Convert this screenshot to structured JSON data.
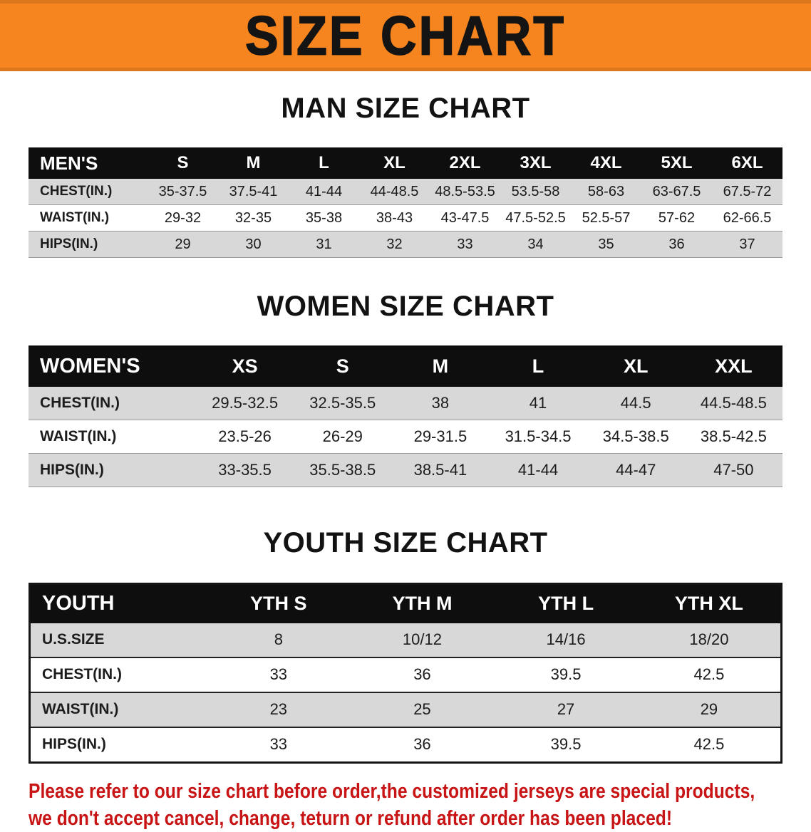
{
  "banner": {
    "title": "SIZE CHART"
  },
  "chart_data": [
    {
      "type": "table",
      "title": "MAN SIZE CHART",
      "columns": [
        "MEN'S",
        "S",
        "M",
        "L",
        "XL",
        "2XL",
        "3XL",
        "4XL",
        "5XL",
        "6XL"
      ],
      "rows": [
        [
          "CHEST(IN.)",
          "35-37.5",
          "37.5-41",
          "41-44",
          "44-48.5",
          "48.5-53.5",
          "53.5-58",
          "58-63",
          "63-67.5",
          "67.5-72"
        ],
        [
          "WAIST(IN.)",
          "29-32",
          "32-35",
          "35-38",
          "38-43",
          "43-47.5",
          "47.5-52.5",
          "52.5-57",
          "57-62",
          "62-66.5"
        ],
        [
          "HIPS(IN.)",
          "29",
          "30",
          "31",
          "32",
          "33",
          "34",
          "35",
          "36",
          "37"
        ]
      ]
    },
    {
      "type": "table",
      "title": "WOMEN SIZE CHART",
      "columns": [
        "WOMEN'S",
        "XS",
        "S",
        "M",
        "L",
        "XL",
        "XXL"
      ],
      "rows": [
        [
          "CHEST(IN.)",
          "29.5-32.5",
          "32.5-35.5",
          "38",
          "41",
          "44.5",
          "44.5-48.5"
        ],
        [
          "WAIST(IN.)",
          "23.5-26",
          "26-29",
          "29-31.5",
          "31.5-34.5",
          "34.5-38.5",
          "38.5-42.5"
        ],
        [
          "HIPS(IN.)",
          "33-35.5",
          "35.5-38.5",
          "38.5-41",
          "41-44",
          "44-47",
          "47-50"
        ]
      ]
    },
    {
      "type": "table",
      "title": "YOUTH SIZE CHART",
      "columns": [
        "YOUTH",
        "YTH S",
        "YTH M",
        "YTH L",
        "YTH XL"
      ],
      "rows": [
        [
          "U.S.SIZE",
          "8",
          "10/12",
          "14/16",
          "18/20"
        ],
        [
          "CHEST(IN.)",
          "33",
          "36",
          "39.5",
          "42.5"
        ],
        [
          "WAIST(IN.)",
          "23",
          "25",
          "27",
          "29"
        ],
        [
          "HIPS(IN.)",
          "33",
          "36",
          "39.5",
          "42.5"
        ]
      ]
    }
  ],
  "footer": {
    "line1": "Please refer to our size chart before order,the customized jerseys are special products,",
    "line2": "we don't accept cancel, change, teturn or refund after order has been placed!"
  },
  "colors": {
    "banner_bg": "#f6851f",
    "table_header_bg": "#0e0e0e",
    "row_shade": "#d8d8d8",
    "notice_red": "#c81414"
  }
}
